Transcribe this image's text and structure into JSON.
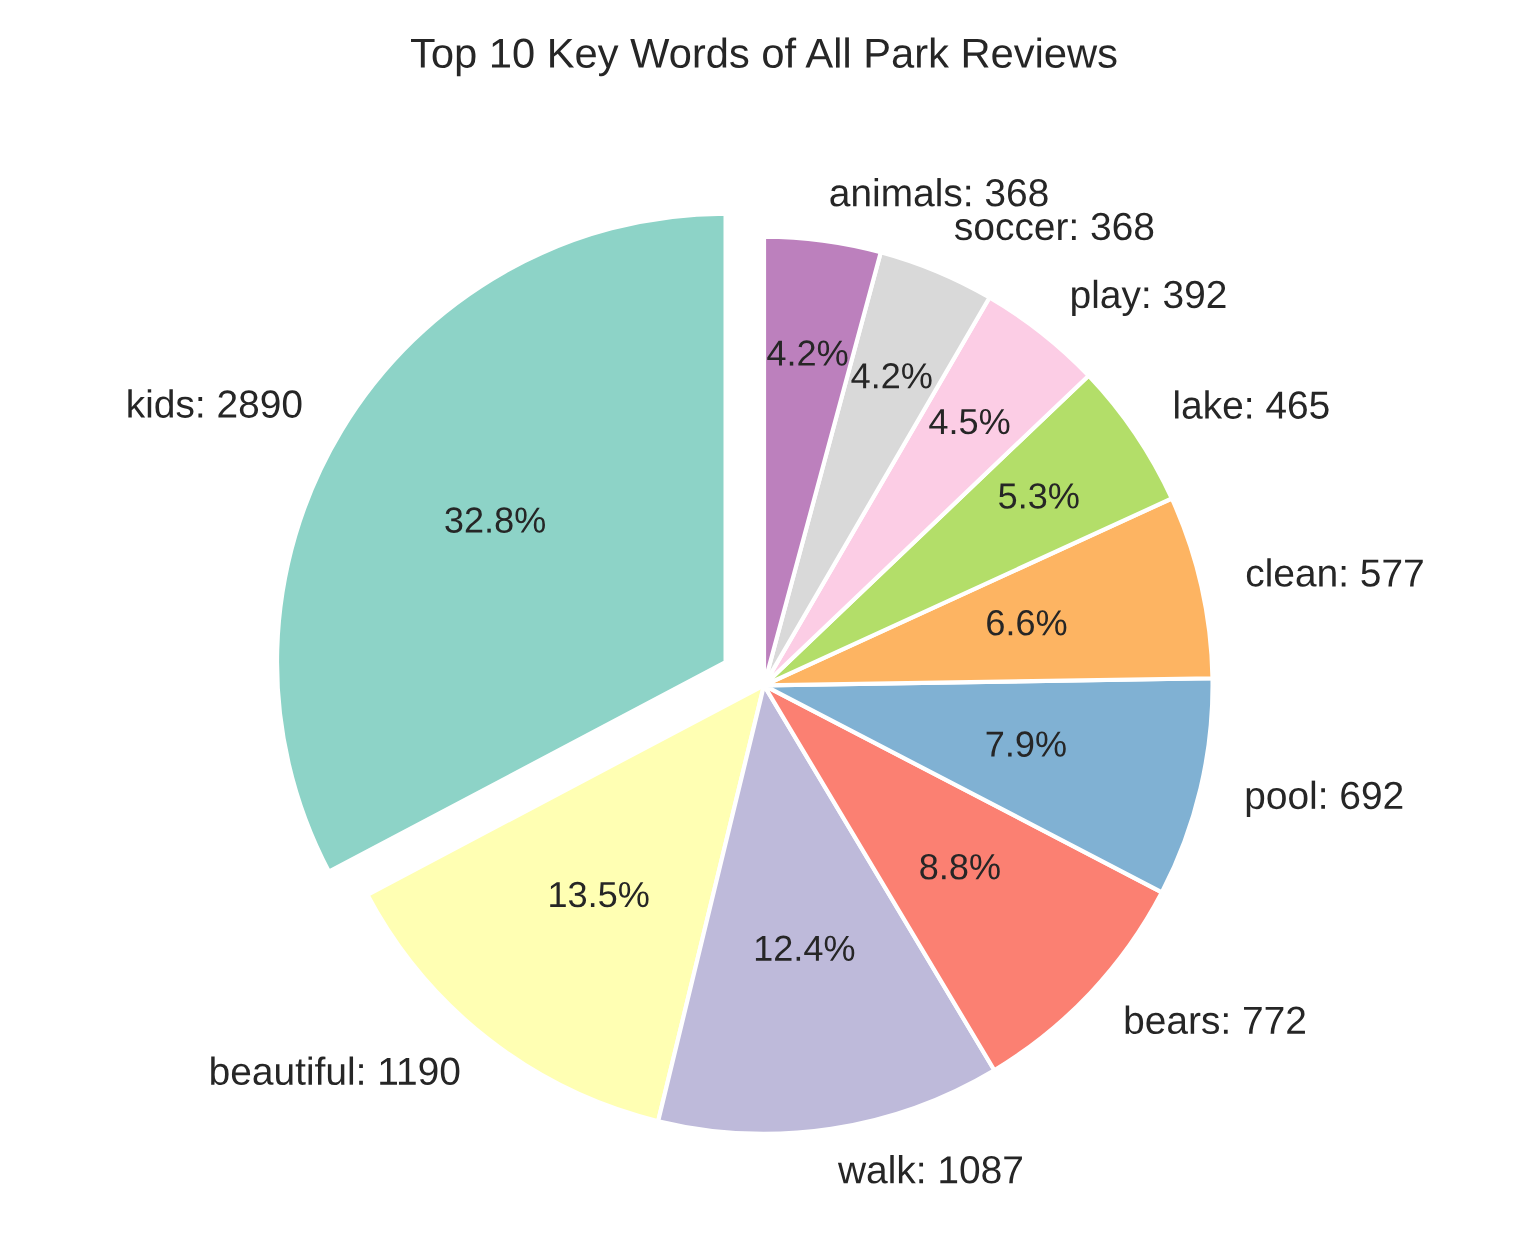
{
  "chart_data": {
    "type": "pie",
    "title": "Top 10 Key Words of All Park Reviews",
    "categories": [
      "kids: 2890",
      "beautiful: 1190",
      "walk: 1087",
      "bears: 772",
      "pool: 692",
      "clean: 577",
      "lake: 465",
      "play: 392",
      "soccer: 368",
      "animals: 368"
    ],
    "values": [
      32.8,
      13.5,
      12.4,
      8.8,
      7.9,
      6.6,
      5.3,
      4.5,
      4.2,
      4.2
    ],
    "colors": [
      "#8dd3c7",
      "#ffffb3",
      "#bebada",
      "#fb8072",
      "#80b1d3",
      "#fdb462",
      "#b3de69",
      "#fccde5",
      "#d9d9d9",
      "#bc80bd"
    ],
    "value_labels": [
      "32.8%",
      "13.5%",
      "12.4%",
      "8.8%",
      "7.9%",
      "6.6%",
      "5.3%",
      "4.5%",
      "4.2%",
      "4.2%"
    ]
  }
}
